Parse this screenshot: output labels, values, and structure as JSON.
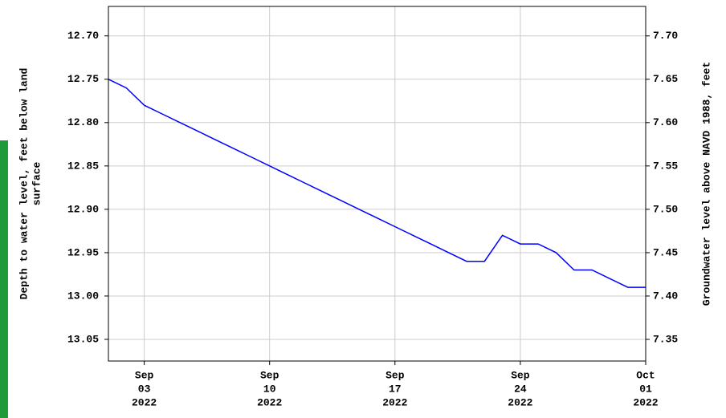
{
  "chart_data": {
    "type": "line",
    "ylabel": [
      "Depth to water level, feet below land",
      "surface"
    ],
    "y2label": "Groundwater level above NAVD 1988, feet",
    "x": [
      "2022-09-01",
      "2022-09-02",
      "2022-09-03",
      "2022-09-04",
      "2022-09-05",
      "2022-09-06",
      "2022-09-07",
      "2022-09-08",
      "2022-09-09",
      "2022-09-10",
      "2022-09-11",
      "2022-09-12",
      "2022-09-13",
      "2022-09-14",
      "2022-09-15",
      "2022-09-16",
      "2022-09-17",
      "2022-09-18",
      "2022-09-19",
      "2022-09-20",
      "2022-09-21",
      "2022-09-22",
      "2022-09-23",
      "2022-09-24",
      "2022-09-25",
      "2022-09-26",
      "2022-09-27",
      "2022-09-28",
      "2022-09-29",
      "2022-09-30",
      "2022-10-01"
    ],
    "series": [
      {
        "color": "#0000ff",
        "values": [
          12.75,
          12.76,
          12.78,
          12.79,
          12.8,
          12.81,
          12.82,
          12.83,
          12.84,
          12.85,
          12.86,
          12.87,
          12.88,
          12.89,
          12.9,
          12.91,
          12.92,
          12.93,
          12.94,
          12.95,
          12.96,
          12.96,
          12.93,
          12.94,
          12.94,
          12.95,
          12.97,
          12.97,
          12.98,
          12.99,
          12.99
        ]
      }
    ],
    "xlim": [
      "2022-09-01",
      "2022-10-01"
    ],
    "xticks": [
      {
        "value": "2022-09-03",
        "label": [
          "Sep",
          "03",
          "2022"
        ]
      },
      {
        "value": "2022-09-10",
        "label": [
          "Sep",
          "10",
          "2022"
        ]
      },
      {
        "value": "2022-09-17",
        "label": [
          "Sep",
          "17",
          "2022"
        ]
      },
      {
        "value": "2022-09-24",
        "label": [
          "Sep",
          "24",
          "2022"
        ]
      },
      {
        "value": "2022-10-01",
        "label": [
          "Oct",
          "01",
          "2022"
        ]
      }
    ],
    "ylim": [
      13.075,
      12.666
    ],
    "yticks": [
      {
        "value": 12.7,
        "label": "12.70"
      },
      12.75,
      {
        "value": 12.8,
        "label": "12.80"
      },
      12.85,
      {
        "value": 12.9,
        "label": "12.90"
      },
      12.95,
      {
        "value": 13.0,
        "label": "13.00"
      },
      13.05
    ],
    "y2lim": [
      7.325,
      7.734
    ],
    "y2ticks": [
      {
        "value": 7.7,
        "label": "7.70"
      },
      7.65,
      {
        "value": 7.6,
        "label": "7.60"
      },
      7.55,
      {
        "value": 7.5,
        "label": "7.50"
      },
      7.45,
      {
        "value": 7.4,
        "label": "7.40"
      },
      7.35
    ],
    "grid": true
  }
}
